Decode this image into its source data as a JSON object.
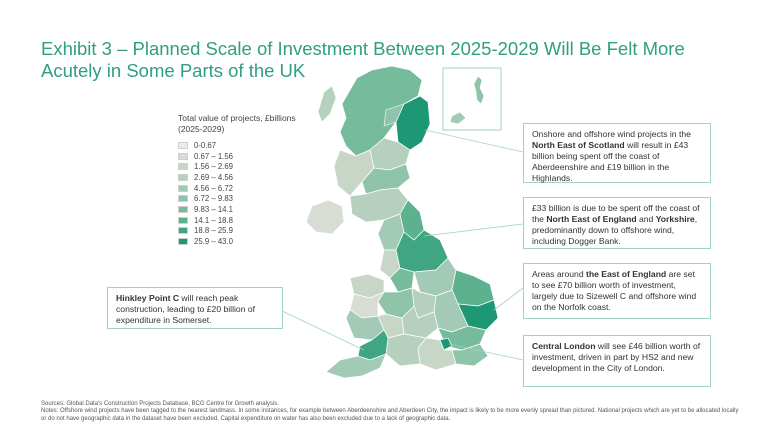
{
  "title": "Exhibit 3 – Planned Scale of Investment Between 2025-2029 Will Be Felt More Acutely in Some Parts of the UK",
  "legend": {
    "title": "Total value of projects, £billions (2025-2029)",
    "items": [
      {
        "label": "0-0.67",
        "color": "#ececec"
      },
      {
        "label": "0.67 – 1.56",
        "color": "#d7ddd5"
      },
      {
        "label": "1.56 – 2.69",
        "color": "#c8d6c8"
      },
      {
        "label": "2.69 – 4.56",
        "color": "#b6d0bf"
      },
      {
        "label": "4.56 – 6.72",
        "color": "#a3cab6"
      },
      {
        "label": "6.72 – 9.83",
        "color": "#8fc3aa"
      },
      {
        "label": "9.83 – 14.1",
        "color": "#77bb9d"
      },
      {
        "label": "14.1 – 18.8",
        "color": "#5db18f"
      },
      {
        "label": "18.8 – 25.9",
        "color": "#3fa582"
      },
      {
        "label": "25.9 – 43.0",
        "color": "#1e9874"
      }
    ]
  },
  "callouts": {
    "scotland": {
      "pre": "Onshore and offshore wind projects in the ",
      "bold": "North East of Scotland",
      "post": " will result in £43 billion being spent off the coast of Aberdeenshire and £19 billion in the Highlands."
    },
    "ne_england": {
      "pre": "£33 billion is due to be spent off the coast of the ",
      "bold": "North East of England",
      "mid": " and ",
      "bold2": "Yorkshire",
      "post": ", predominantly down to offshore wind, including Dogger Bank."
    },
    "east_england": {
      "pre": "Areas around ",
      "bold": "the East of England",
      "post": " are set to see £70 billion worth of investment, largely due to Sizewell C and offshore wind on the Norfolk coast."
    },
    "london": {
      "bold": "Central London",
      "post": " will see £46 billion worth of investment, driven in part by HS2 and new development in the City of London."
    },
    "hinkley": {
      "bold": "Hinkley Point C",
      "post": " will reach peak construction, leading to £20 billion of expenditure in Somerset."
    }
  },
  "footer": {
    "sources": "Sources: Global Data's Construction Projects Database, BCG Centre for Growth analysis.",
    "notes": "Notes: Offshore wind projects have been tagged to the nearest landmass. In some instances, for example between Aberdeenshire and Aberdeen City, the impact is likely to be more evenly spread than pictured. National projects which are yet to be allocated locally or do not have geographic data in the dataset have been excluded. Capital expenditure on water has also been excluded due to a lack of geographic data."
  }
}
